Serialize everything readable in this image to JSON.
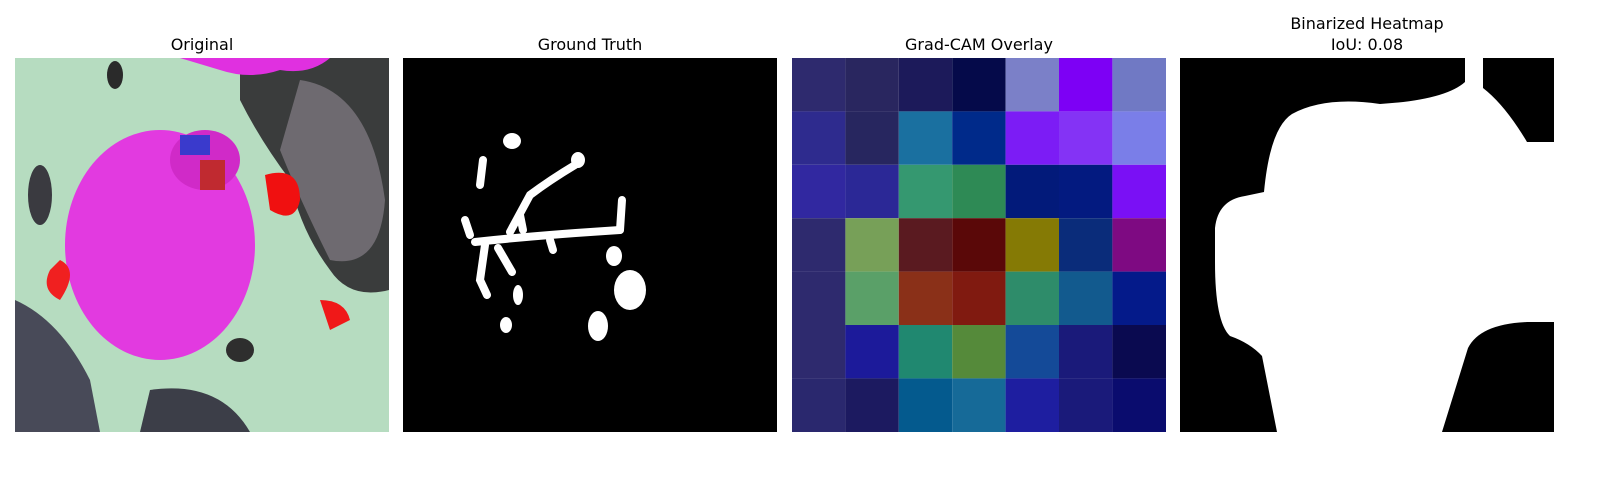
{
  "panels": [
    {
      "title": [
        "Original"
      ]
    },
    {
      "title": [
        "Ground Truth"
      ]
    },
    {
      "title": [
        "Grad-CAM Overlay"
      ]
    },
    {
      "title": [
        "Binarized Heatmap",
        "IoU: 0.08"
      ]
    }
  ]
}
